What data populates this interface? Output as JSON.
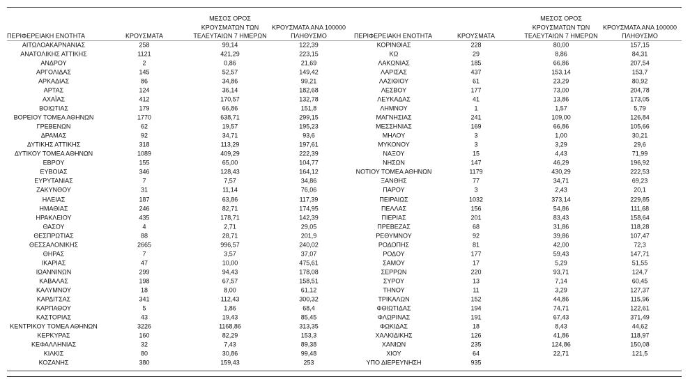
{
  "tables": [
    {
      "headers": [
        [
          "ΠΕΡΙΦΕΡΕΙΑΚΗ ΕΝΟΤΗΤΑ"
        ],
        [
          "ΚΡΟΥΣΜΑΤΑ"
        ],
        [
          "ΜΕΣΟΣ ΟΡΟΣ",
          "ΚΡΟΥΣΜΑΤΩΝ ΤΩΝ",
          "ΤΕΛΕΥΤΑΙΩΝ 7 ΗΜΕΡΩΝ"
        ],
        [
          "ΚΡΟΥΣΜΑΤΑ ΑΝΑ 100000",
          "ΠΛΗΘΥΣΜΟ"
        ]
      ],
      "rows": [
        [
          "ΑΙΤΩΛΟΑΚΑΡΝΑΝΙΑΣ",
          "258",
          "99,14",
          "122,39"
        ],
        [
          "ΑΝΑΤΟΛΙΚΗΣ ΑΤΤΙΚΗΣ",
          "1121",
          "421,29",
          "223,15"
        ],
        [
          "ΑΝΔΡΟΥ",
          "2",
          "0,86",
          "21,69"
        ],
        [
          "ΑΡΓΟΛΙΔΑΣ",
          "145",
          "52,57",
          "149,42"
        ],
        [
          "ΑΡΚΑΔΙΑΣ",
          "86",
          "34,86",
          "99,21"
        ],
        [
          "ΑΡΤΑΣ",
          "124",
          "36,14",
          "182,68"
        ],
        [
          "ΑΧΑΪΑΣ",
          "412",
          "170,57",
          "132,78"
        ],
        [
          "ΒΟΙΩΤΙΑΣ",
          "179",
          "66,86",
          "151,8"
        ],
        [
          "ΒΟΡΕΙΟΥ ΤΟΜΕΑ ΑΘΗΝΩΝ",
          "1770",
          "638,71",
          "299,15"
        ],
        [
          "ΓΡΕΒΕΝΩΝ",
          "62",
          "19,57",
          "195,23"
        ],
        [
          "ΔΡΑΜΑΣ",
          "92",
          "34,71",
          "93,6"
        ],
        [
          "ΔΥΤΙΚΗΣ ΑΤΤΙΚΗΣ",
          "318",
          "113,29",
          "197,61"
        ],
        [
          "ΔΥΤΙΚΟΥ ΤΟΜΕΑ ΑΘΗΝΩΝ",
          "1089",
          "409,29",
          "222,39"
        ],
        [
          "ΕΒΡΟΥ",
          "155",
          "65,00",
          "104,77"
        ],
        [
          "ΕΥΒΟΙΑΣ",
          "346",
          "128,43",
          "164,12"
        ],
        [
          "ΕΥΡΥΤΑΝΙΑΣ",
          "7",
          "7,57",
          "34,86"
        ],
        [
          "ΖΑΚΥΝΘΟΥ",
          "31",
          "11,14",
          "76,06"
        ],
        [
          "ΗΛΕΙΑΣ",
          "187",
          "63,86",
          "117,39"
        ],
        [
          "ΗΜΑΘΙΑΣ",
          "246",
          "82,71",
          "174,95"
        ],
        [
          "ΗΡΑΚΛΕΙΟΥ",
          "435",
          "178,71",
          "142,39"
        ],
        [
          "ΘΑΣΟΥ",
          "4",
          "2,71",
          "29,05"
        ],
        [
          "ΘΕΣΠΡΩΤΙΑΣ",
          "88",
          "28,71",
          "201,9"
        ],
        [
          "ΘΕΣΣΑΛΟΝΙΚΗΣ",
          "2665",
          "996,57",
          "240,02"
        ],
        [
          "ΘΗΡΑΣ",
          "7",
          "3,57",
          "37,07"
        ],
        [
          "ΙΚΑΡΙΑΣ",
          "47",
          "10,00",
          "475,61"
        ],
        [
          "ΙΩΑΝΝΙΝΩΝ",
          "299",
          "94,43",
          "178,08"
        ],
        [
          "ΚΑΒΑΛΑΣ",
          "198",
          "67,57",
          "158,51"
        ],
        [
          "ΚΑΛΥΜΝΟΥ",
          "18",
          "8,00",
          "61,12"
        ],
        [
          "ΚΑΡΔΙΤΣΑΣ",
          "341",
          "112,43",
          "300,32"
        ],
        [
          "ΚΑΡΠΑΘΟΥ",
          "5",
          "1,86",
          "68,4"
        ],
        [
          "ΚΑΣΤΟΡΙΑΣ",
          "43",
          "19,43",
          "85,45"
        ],
        [
          "ΚΕΝΤΡΙΚΟΥ ΤΟΜΕΑ ΑΘΗΝΩΝ",
          "3226",
          "1168,86",
          "313,35"
        ],
        [
          "ΚΕΡΚΥΡΑΣ",
          "160",
          "82,29",
          "153,3"
        ],
        [
          "ΚΕΦΑΛΛΗΝΙΑΣ",
          "32",
          "7,43",
          "89,38"
        ],
        [
          "ΚΙΛΚΙΣ",
          "80",
          "30,86",
          "99,48"
        ],
        [
          "ΚΟΖΑΝΗΣ",
          "380",
          "159,43",
          "253"
        ]
      ]
    },
    {
      "headers": [
        [
          "ΠΕΡΙΦΕΡΕΙΑΚΗ ΕΝΟΤΗΤΑ"
        ],
        [
          "ΚΡΟΥΣΜΑΤΑ"
        ],
        [
          "ΜΕΣΟΣ ΟΡΟΣ",
          "ΚΡΟΥΣΜΑΤΩΝ ΤΩΝ",
          "ΤΕΛΕΥΤΑΙΩΝ 7 ΗΜΕΡΩΝ"
        ],
        [
          "ΚΡΟΥΣΜΑΤΑ ΑΝΑ 100000",
          "ΠΛΗΘΥΣΜΟ"
        ]
      ],
      "rows": [
        [
          "ΚΟΡΙΝΘΙΑΣ",
          "228",
          "80,00",
          "157,15"
        ],
        [
          "ΚΩ",
          "29",
          "8,86",
          "84,31"
        ],
        [
          "ΛΑΚΩΝΙΑΣ",
          "185",
          "66,86",
          "207,54"
        ],
        [
          "ΛΑΡΙΣΑΣ",
          "437",
          "153,14",
          "153,7"
        ],
        [
          "ΛΑΣΙΘΙΟΥ",
          "61",
          "23,29",
          "80,92"
        ],
        [
          "ΛΕΣΒΟΥ",
          "177",
          "73,00",
          "204,78"
        ],
        [
          "ΛΕΥΚΑΔΑΣ",
          "41",
          "13,86",
          "173,05"
        ],
        [
          "ΛΗΜΝΟΥ",
          "1",
          "1,57",
          "5,79"
        ],
        [
          "ΜΑΓΝΗΣΙΑΣ",
          "241",
          "109,00",
          "126,84"
        ],
        [
          "ΜΕΣΣΗΝΙΑΣ",
          "169",
          "66,86",
          "105,66"
        ],
        [
          "ΜΗΛΟΥ",
          "3",
          "1,00",
          "30,21"
        ],
        [
          "ΜΥΚΟΝΟΥ",
          "3",
          "3,29",
          "29,6"
        ],
        [
          "ΝΑΞΟΥ",
          "15",
          "4,43",
          "71,99"
        ],
        [
          "ΝΗΣΩΝ",
          "147",
          "46,29",
          "196,92"
        ],
        [
          "ΝΟΤΙΟΥ ΤΟΜΕΑ ΑΘΗΝΩΝ",
          "1179",
          "430,29",
          "222,53"
        ],
        [
          "ΞΑΝΘΗΣ",
          "77",
          "34,71",
          "69,23"
        ],
        [
          "ΠΑΡΟΥ",
          "3",
          "2,43",
          "20,1"
        ],
        [
          "ΠΕΙΡΑΙΩΣ",
          "1032",
          "373,14",
          "229,85"
        ],
        [
          "ΠΕΛΛΑΣ",
          "156",
          "54,86",
          "111,68"
        ],
        [
          "ΠΙΕΡΙΑΣ",
          "201",
          "83,43",
          "158,64"
        ],
        [
          "ΠΡΕΒΕΖΑΣ",
          "68",
          "31,86",
          "118,28"
        ],
        [
          "ΡΕΘΥΜΝΟΥ",
          "92",
          "39,86",
          "107,47"
        ],
        [
          "ΡΟΔΟΠΗΣ",
          "81",
          "42,00",
          "72,3"
        ],
        [
          "ΡΟΔΟΥ",
          "177",
          "59,43",
          "147,71"
        ],
        [
          "ΣΑΜΟΥ",
          "17",
          "5,29",
          "51,55"
        ],
        [
          "ΣΕΡΡΩΝ",
          "220",
          "93,71",
          "124,7"
        ],
        [
          "ΣΥΡΟΥ",
          "13",
          "7,14",
          "60,45"
        ],
        [
          "ΤΗΝΟΥ",
          "11",
          "3,29",
          "127,37"
        ],
        [
          "ΤΡΙΚΑΛΩΝ",
          "152",
          "44,86",
          "115,96"
        ],
        [
          "ΦΘΙΩΤΙΔΑΣ",
          "194",
          "74,71",
          "122,61"
        ],
        [
          "ΦΛΩΡΙΝΑΣ",
          "191",
          "67,43",
          "371,49"
        ],
        [
          "ΦΩΚΙΔΑΣ",
          "18",
          "8,43",
          "44,62"
        ],
        [
          "ΧΑΛΚΙΔΙΚΗΣ",
          "126",
          "41,86",
          "118,97"
        ],
        [
          "ΧΑΝΙΩΝ",
          "235",
          "124,86",
          "150,08"
        ],
        [
          "ΧΙΟΥ",
          "64",
          "22,71",
          "121,5"
        ],
        [
          "ΥΠΟ ΔΙΕΡΕΥΝΗΣΗ",
          "935"
        ]
      ]
    }
  ]
}
